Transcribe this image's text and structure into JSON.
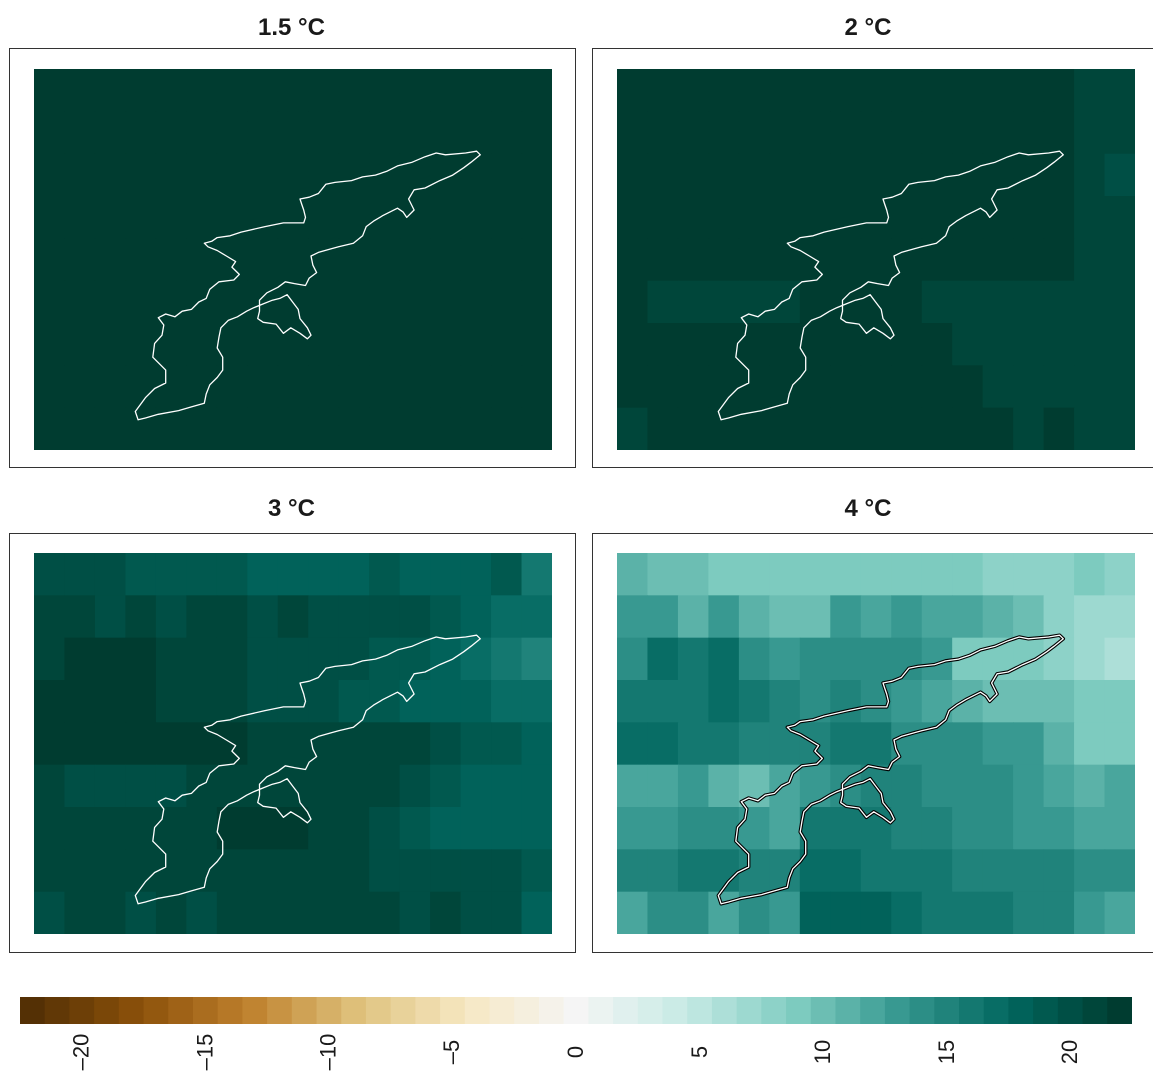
{
  "panels": [
    {
      "title": "1.5 °C"
    },
    {
      "title": "2 °C"
    },
    {
      "title": "3 °C"
    },
    {
      "title": "4 °C"
    }
  ],
  "chart_data": {
    "type": "heatmap",
    "grid": {
      "rows": 9,
      "cols": 17
    },
    "panels": [
      {
        "title": "1.5 °C",
        "values": [
          [
            22,
            22,
            22,
            22,
            22,
            22,
            22,
            22,
            22,
            22,
            22,
            22,
            22,
            22,
            22,
            22,
            22
          ],
          [
            22,
            22,
            22,
            22,
            22,
            22,
            22,
            22,
            22,
            22,
            22,
            22,
            22,
            22,
            22,
            22,
            22
          ],
          [
            22,
            22,
            22,
            22,
            22,
            22,
            22,
            22,
            22,
            22,
            22,
            22,
            22,
            22,
            22,
            22,
            22
          ],
          [
            22,
            22,
            22,
            22,
            22,
            22,
            22,
            22,
            22,
            22,
            22,
            22,
            22,
            22,
            22,
            22,
            22
          ],
          [
            22,
            22,
            22,
            22,
            22,
            22,
            22,
            22,
            22,
            22,
            22,
            22,
            22,
            22,
            22,
            22,
            22
          ],
          [
            22,
            22,
            22,
            22,
            22,
            22,
            22,
            22,
            22,
            22,
            22,
            22,
            22,
            22,
            22,
            22,
            22
          ],
          [
            22,
            22,
            22,
            22,
            22,
            22,
            22,
            22,
            22,
            22,
            22,
            22,
            22,
            22,
            22,
            22,
            22
          ],
          [
            22,
            22,
            22,
            22,
            22,
            22,
            22,
            22,
            22,
            22,
            22,
            22,
            22,
            22,
            22,
            22,
            22
          ],
          [
            22,
            22,
            22,
            22,
            22,
            22,
            22,
            22,
            22,
            22,
            22,
            22,
            22,
            22,
            22,
            22,
            22
          ]
        ]
      },
      {
        "title": "2 °C",
        "values": [
          [
            22,
            22,
            22,
            22,
            22,
            22,
            22,
            22,
            22,
            22,
            22,
            22,
            22,
            22,
            22,
            21,
            21
          ],
          [
            22,
            22,
            22,
            22,
            22,
            22,
            22,
            22,
            22,
            22,
            22,
            22,
            22,
            22,
            22,
            21,
            21
          ],
          [
            22,
            22,
            22,
            22,
            22,
            22,
            22,
            22,
            22,
            22,
            22,
            22,
            22,
            22,
            22,
            21,
            20
          ],
          [
            22,
            22,
            22,
            22,
            22,
            22,
            22,
            22,
            22,
            22,
            22,
            22,
            22,
            22,
            22,
            21,
            21
          ],
          [
            22,
            22,
            22,
            22,
            22,
            22,
            22,
            22,
            22,
            22,
            22,
            22,
            22,
            22,
            22,
            21,
            21
          ],
          [
            22,
            21,
            21,
            21,
            21,
            21,
            22,
            22,
            22,
            22,
            21,
            21,
            21,
            21,
            21,
            21,
            21
          ],
          [
            22,
            22,
            22,
            22,
            22,
            22,
            22,
            22,
            22,
            22,
            22,
            21,
            21,
            21,
            21,
            21,
            21
          ],
          [
            22,
            22,
            22,
            22,
            22,
            22,
            22,
            22,
            22,
            22,
            22,
            22,
            21,
            21,
            21,
            21,
            21
          ],
          [
            21,
            22,
            22,
            22,
            22,
            22,
            22,
            22,
            22,
            22,
            22,
            22,
            22,
            21,
            22,
            21,
            21
          ]
        ]
      },
      {
        "title": "3 °C",
        "values": [
          [
            20,
            20,
            20,
            19,
            19,
            19,
            19,
            18,
            18,
            18,
            18,
            19,
            18,
            18,
            18,
            19,
            16
          ],
          [
            21,
            21,
            20,
            21,
            20,
            21,
            21,
            20,
            21,
            20,
            20,
            20,
            20,
            19,
            18,
            17,
            17
          ],
          [
            21,
            22,
            22,
            22,
            21,
            21,
            21,
            20,
            20,
            20,
            20,
            19,
            19,
            18,
            17,
            16,
            15
          ],
          [
            22,
            22,
            22,
            22,
            21,
            21,
            21,
            20,
            20,
            20,
            19,
            19,
            18,
            18,
            18,
            17,
            17
          ],
          [
            22,
            22,
            22,
            22,
            22,
            22,
            22,
            21,
            21,
            21,
            21,
            21,
            21,
            20,
            19,
            19,
            18
          ],
          [
            21,
            20,
            20,
            20,
            20,
            21,
            21,
            21,
            21,
            21,
            21,
            21,
            20,
            19,
            18,
            18,
            18
          ],
          [
            21,
            21,
            21,
            21,
            21,
            21,
            22,
            22,
            22,
            21,
            21,
            20,
            19,
            18,
            18,
            18,
            18
          ],
          [
            21,
            21,
            21,
            21,
            21,
            21,
            21,
            21,
            21,
            21,
            21,
            20,
            20,
            20,
            20,
            20,
            19
          ],
          [
            20,
            21,
            21,
            20,
            21,
            20,
            21,
            21,
            21,
            21,
            21,
            21,
            20,
            21,
            20,
            20,
            18
          ]
        ]
      },
      {
        "title": "4 °C",
        "values": [
          [
            11,
            10,
            10,
            9,
            9,
            9,
            9,
            9,
            9,
            9,
            9,
            9,
            8,
            8,
            8,
            9,
            8
          ],
          [
            13,
            13,
            11,
            13,
            11,
            10,
            10,
            13,
            12,
            13,
            12,
            12,
            11,
            10,
            8,
            7,
            7
          ],
          [
            14,
            17,
            16,
            17,
            14,
            13,
            14,
            14,
            14,
            14,
            13,
            9,
            9,
            9,
            8,
            7,
            6
          ],
          [
            16,
            16,
            16,
            17,
            16,
            15,
            14,
            15,
            14,
            13,
            12,
            11,
            10,
            10,
            10,
            9,
            9
          ],
          [
            17,
            17,
            16,
            16,
            15,
            15,
            15,
            16,
            16,
            14,
            14,
            14,
            13,
            13,
            11,
            9,
            9
          ],
          [
            12,
            12,
            13,
            11,
            10,
            12,
            13,
            14,
            15,
            15,
            14,
            14,
            14,
            13,
            12,
            11,
            12
          ],
          [
            13,
            13,
            14,
            14,
            13,
            12,
            16,
            16,
            16,
            15,
            15,
            14,
            14,
            13,
            13,
            12,
            12
          ],
          [
            15,
            15,
            16,
            16,
            15,
            15,
            17,
            17,
            16,
            16,
            16,
            15,
            15,
            15,
            15,
            14,
            14
          ],
          [
            12,
            14,
            14,
            12,
            14,
            13,
            18,
            18,
            18,
            17,
            16,
            16,
            16,
            15,
            15,
            13,
            12
          ]
        ]
      }
    ],
    "colorbar": {
      "min": -22,
      "max": 22,
      "step": 1,
      "ticks": [
        "–20",
        "–15",
        "–10",
        "–5",
        "0",
        "5",
        "10",
        "15",
        "20"
      ],
      "tick_values": [
        -20,
        -15,
        -10,
        -5,
        0,
        5,
        10,
        15,
        20
      ]
    },
    "colors": {
      "palette": [
        "#543005",
        "#8c510a",
        "#bf812d",
        "#dfc27d",
        "#f6e8c3",
        "#f5f5f5",
        "#c7eae5",
        "#80cdc1",
        "#35978f",
        "#01665e",
        "#003c30"
      ],
      "outline": "#ffffff"
    }
  }
}
